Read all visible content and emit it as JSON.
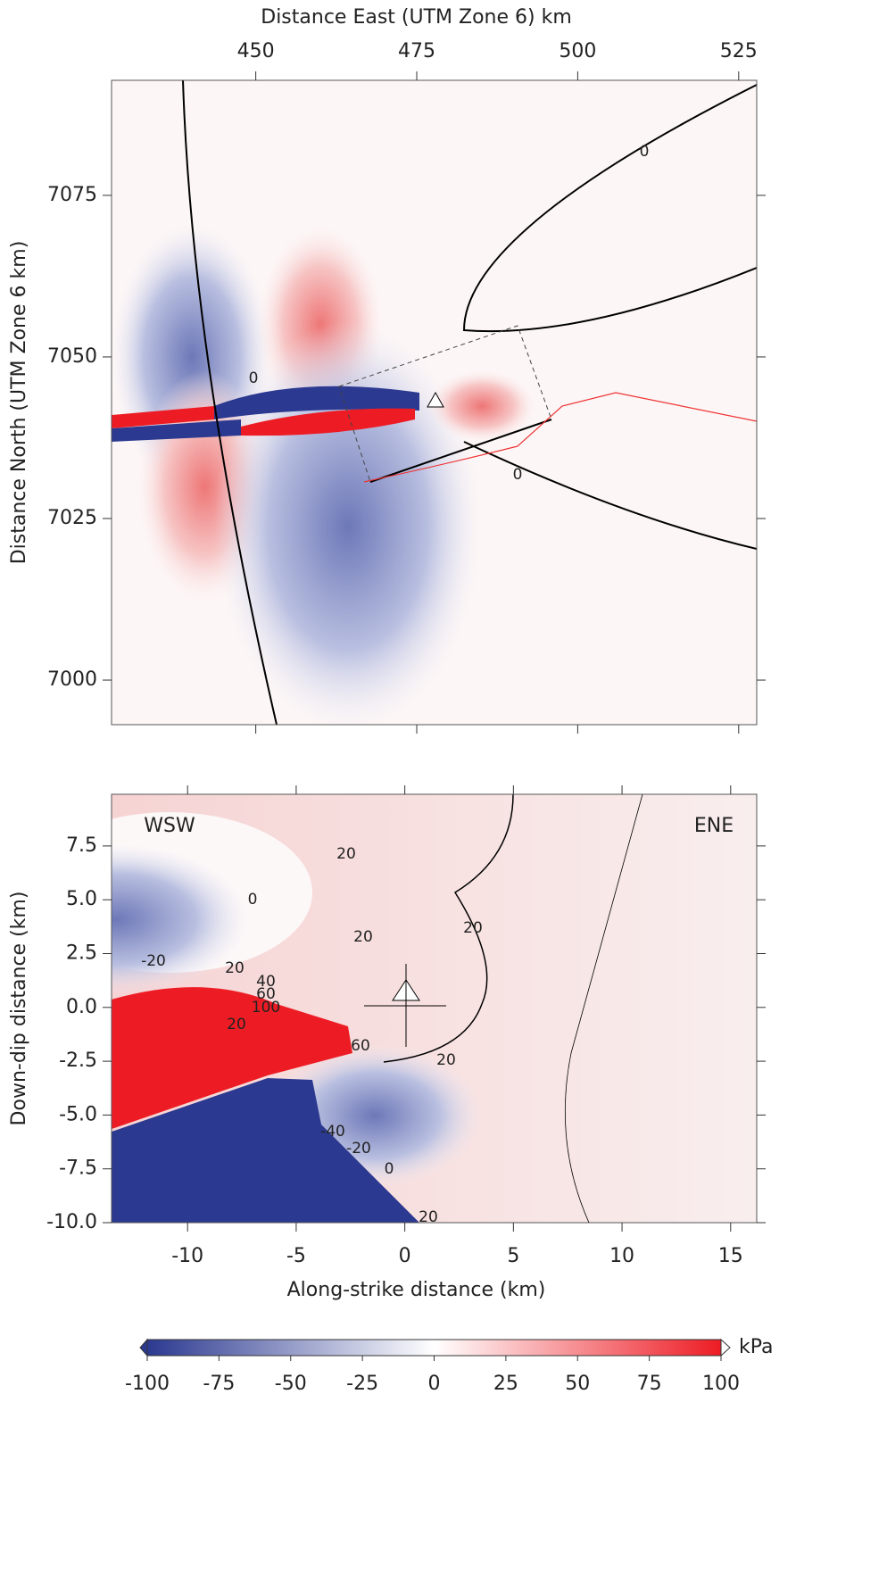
{
  "chart_data": [
    {
      "type": "contour",
      "xlabel": "Distance East (UTM Zone 6) km",
      "ylabel": "Distance North (UTM Zone 6 km)",
      "xaxis": "top",
      "xlim": [
        427.6,
        527.8
      ],
      "xticks": [
        450,
        475,
        500,
        525
      ],
      "ylim": [
        6993.1,
        7092.8
      ],
      "yticks": [
        7000,
        7025,
        7050,
        7075
      ],
      "annotations": [
        "0",
        "0",
        "0"
      ]
    },
    {
      "type": "contour",
      "xlabel": "Along-strike distance (km)",
      "ylabel": "Down-dip distance (km)",
      "xaxis": "bottom",
      "xlim": [
        -13.5,
        16.2
      ],
      "xticks": [
        -10,
        -5,
        0,
        5,
        10,
        15
      ],
      "ylim": [
        -10,
        9.9
      ],
      "yticks": [
        {
          "value": -10,
          "label": "-10.0"
        },
        -7.5,
        {
          "value": -5,
          "label": "-5.0"
        },
        -2.5,
        {
          "value": 0,
          "label": "0.0"
        },
        2.5,
        {
          "value": 5,
          "label": "5.0"
        },
        7.5
      ],
      "annotations": [
        "WSW",
        "ENE",
        "20",
        "20",
        "20",
        "20",
        "0",
        "-20",
        "20",
        "40",
        "60",
        "100",
        "60",
        "20",
        "-40",
        "-20",
        "0",
        "20"
      ]
    },
    {
      "type": "colorbar",
      "label": "kPa",
      "xlim": [
        -100,
        100
      ],
      "xticks": [
        -100,
        -75,
        -50,
        -25,
        0,
        25,
        50,
        75,
        100
      ],
      "colormap": [
        "#2b3990",
        "#ffffff",
        "#ed1c24"
      ]
    }
  ]
}
